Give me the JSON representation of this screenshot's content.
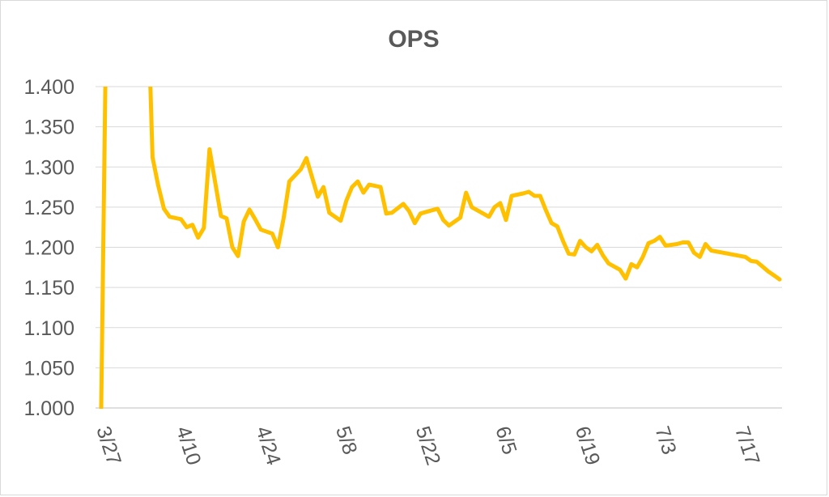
{
  "chart_data": {
    "type": "line",
    "title": "OPS",
    "xlabel": "",
    "ylabel": "",
    "ylim": [
      1.0,
      1.4
    ],
    "y_ticks": [
      "1.000",
      "1.050",
      "1.100",
      "1.150",
      "1.200",
      "1.250",
      "1.300",
      "1.350",
      "1.400"
    ],
    "x_ticks": [
      {
        "label": "3/27",
        "x": "3/27"
      },
      {
        "label": "4/10",
        "x": "4/10"
      },
      {
        "label": "4/24",
        "x": "4/24"
      },
      {
        "label": "5/8",
        "x": "5/8"
      },
      {
        "label": "5/22",
        "x": "5/22"
      },
      {
        "label": "6/5",
        "x": "6/5"
      },
      {
        "label": "6/19",
        "x": "6/19"
      },
      {
        "label": "7/3",
        "x": "7/3"
      },
      {
        "label": "7/17",
        "x": "7/17"
      }
    ],
    "x_range": [
      "3/27",
      "7/24"
    ],
    "grid": true,
    "legend": "none",
    "series": [
      {
        "color": "#FFC000",
        "points": [
          [
            "3/27",
            1.0
          ],
          [
            "3/28",
            1.55
          ],
          [
            "4/4",
            1.55
          ],
          [
            "4/5",
            1.312
          ],
          [
            "4/6",
            1.277
          ],
          [
            "4/7",
            1.248
          ],
          [
            "4/8",
            1.238
          ],
          [
            "4/10",
            1.235
          ],
          [
            "4/11",
            1.225
          ],
          [
            "4/12",
            1.228
          ],
          [
            "4/13",
            1.212
          ],
          [
            "4/14",
            1.224
          ],
          [
            "4/15",
            1.322
          ],
          [
            "4/17",
            1.239
          ],
          [
            "4/18",
            1.236
          ],
          [
            "4/19",
            1.2
          ],
          [
            "4/20",
            1.189
          ],
          [
            "4/21",
            1.232
          ],
          [
            "4/22",
            1.247
          ],
          [
            "4/23",
            1.235
          ],
          [
            "4/24",
            1.222
          ],
          [
            "4/26",
            1.217
          ],
          [
            "4/27",
            1.2
          ],
          [
            "4/28",
            1.236
          ],
          [
            "4/29",
            1.282
          ],
          [
            "5/1",
            1.297
          ],
          [
            "5/2",
            1.311
          ],
          [
            "5/4",
            1.263
          ],
          [
            "5/5",
            1.275
          ],
          [
            "5/6",
            1.243
          ],
          [
            "5/8",
            1.233
          ],
          [
            "5/9",
            1.258
          ],
          [
            "5/10",
            1.275
          ],
          [
            "5/11",
            1.282
          ],
          [
            "5/12",
            1.268
          ],
          [
            "5/13",
            1.278
          ],
          [
            "5/15",
            1.275
          ],
          [
            "5/16",
            1.242
          ],
          [
            "5/17",
            1.243
          ],
          [
            "5/19",
            1.254
          ],
          [
            "5/20",
            1.245
          ],
          [
            "5/21",
            1.23
          ],
          [
            "5/22",
            1.242
          ],
          [
            "5/24",
            1.246
          ],
          [
            "5/25",
            1.248
          ],
          [
            "5/26",
            1.234
          ],
          [
            "5/27",
            1.227
          ],
          [
            "5/29",
            1.237
          ],
          [
            "5/30",
            1.268
          ],
          [
            "5/31",
            1.25
          ],
          [
            "6/2",
            1.242
          ],
          [
            "6/3",
            1.238
          ],
          [
            "6/4",
            1.25
          ],
          [
            "6/5",
            1.255
          ],
          [
            "6/6",
            1.234
          ],
          [
            "6/7",
            1.264
          ],
          [
            "6/9",
            1.267
          ],
          [
            "6/10",
            1.269
          ],
          [
            "6/11",
            1.264
          ],
          [
            "6/12",
            1.264
          ],
          [
            "6/13",
            1.246
          ],
          [
            "6/14",
            1.23
          ],
          [
            "6/15",
            1.226
          ],
          [
            "6/16",
            1.208
          ],
          [
            "6/17",
            1.192
          ],
          [
            "6/18",
            1.191
          ],
          [
            "6/19",
            1.208
          ],
          [
            "6/20",
            1.2
          ],
          [
            "6/21",
            1.195
          ],
          [
            "6/22",
            1.203
          ],
          [
            "6/23",
            1.19
          ],
          [
            "6/24",
            1.18
          ],
          [
            "6/26",
            1.172
          ],
          [
            "6/27",
            1.161
          ],
          [
            "6/28",
            1.179
          ],
          [
            "6/29",
            1.175
          ],
          [
            "6/30",
            1.188
          ],
          [
            "7/1",
            1.205
          ],
          [
            "7/2",
            1.208
          ],
          [
            "7/3",
            1.213
          ],
          [
            "7/4",
            1.202
          ],
          [
            "7/6",
            1.204
          ],
          [
            "7/7",
            1.206
          ],
          [
            "7/8",
            1.206
          ],
          [
            "7/9",
            1.193
          ],
          [
            "7/10",
            1.188
          ],
          [
            "7/11",
            1.204
          ],
          [
            "7/12",
            1.196
          ],
          [
            "7/18",
            1.188
          ],
          [
            "7/19",
            1.183
          ],
          [
            "7/20",
            1.182
          ],
          [
            "7/21",
            1.176
          ],
          [
            "7/22",
            1.17
          ],
          [
            "7/23",
            1.165
          ],
          [
            "7/24",
            1.16
          ]
        ]
      }
    ]
  }
}
